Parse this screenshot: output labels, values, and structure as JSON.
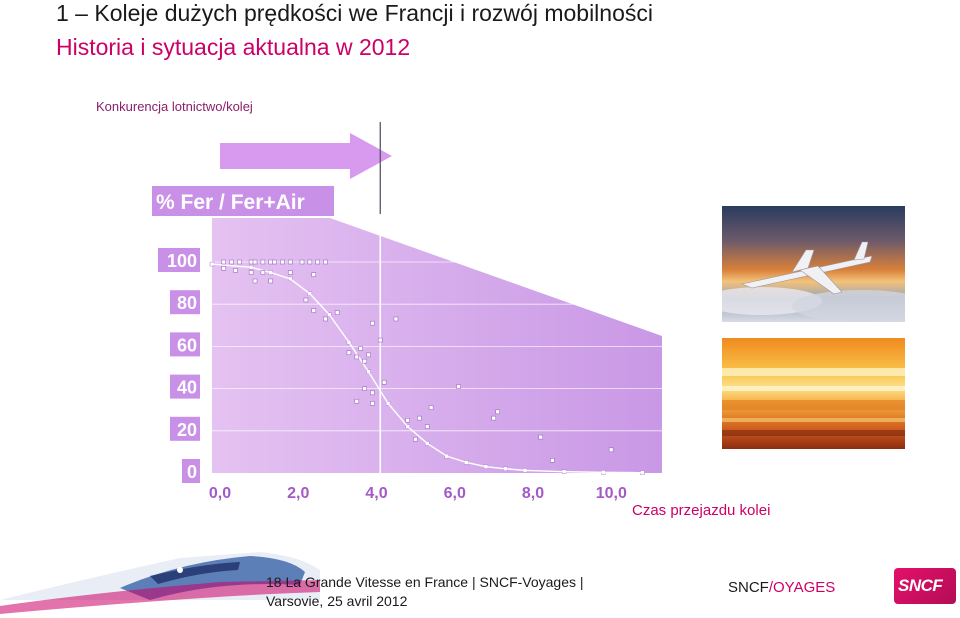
{
  "header": {
    "title": "1 – Koleje dużych prędkości we Francji i rozwój mobilności",
    "subtitle": "Historia i sytuacja aktualna w  2012",
    "section": "Konkurencja lotnictwo/kolej"
  },
  "chart_data": {
    "type": "scatter",
    "ylabel": "% Fer / Fer+Air",
    "xlabel": "Czas przejazdu kolei",
    "x_ticks": [
      "0,0",
      "2,0",
      "4,0",
      "6,0",
      "8,0",
      "10,0"
    ],
    "y_ticks": [
      "0",
      "20",
      "40",
      "60",
      "80",
      "100"
    ],
    "xlim": [
      0,
      11.5
    ],
    "ylim": [
      0,
      100
    ],
    "reference_x": 4.3,
    "series": [
      {
        "type": "scatter",
        "points": [
          [
            0.3,
            100
          ],
          [
            0.5,
            100
          ],
          [
            0.7,
            100
          ],
          [
            1.0,
            100
          ],
          [
            1.1,
            100
          ],
          [
            1.3,
            100
          ],
          [
            1.5,
            100
          ],
          [
            1.6,
            100
          ],
          [
            1.8,
            100
          ],
          [
            2.0,
            100
          ],
          [
            2.3,
            100
          ],
          [
            2.5,
            100
          ],
          [
            2.7,
            100
          ],
          [
            2.9,
            100
          ],
          [
            0.3,
            97
          ],
          [
            0.6,
            96
          ],
          [
            1.0,
            95
          ],
          [
            1.3,
            95
          ],
          [
            2.0,
            95
          ],
          [
            2.6,
            94
          ],
          [
            1.1,
            91
          ],
          [
            1.5,
            91
          ],
          [
            2.4,
            82
          ],
          [
            2.6,
            77
          ],
          [
            3.2,
            76
          ],
          [
            2.9,
            73
          ],
          [
            4.7,
            73
          ],
          [
            4.1,
            71
          ],
          [
            4.3,
            63
          ],
          [
            3.8,
            59
          ],
          [
            4.0,
            56
          ],
          [
            3.7,
            55
          ],
          [
            3.9,
            53
          ],
          [
            3.5,
            57
          ],
          [
            4.4,
            43
          ],
          [
            6.3,
            41
          ],
          [
            3.9,
            40
          ],
          [
            4.1,
            38
          ],
          [
            3.7,
            34
          ],
          [
            4.1,
            33
          ],
          [
            5.6,
            31
          ],
          [
            7.3,
            29
          ],
          [
            5.3,
            26
          ],
          [
            7.2,
            26
          ],
          [
            5.0,
            25
          ],
          [
            5.5,
            22
          ],
          [
            8.4,
            17
          ],
          [
            5.2,
            16
          ],
          [
            10.2,
            11
          ],
          [
            8.7,
            6
          ]
        ]
      },
      {
        "type": "line",
        "points": [
          [
            0,
            99
          ],
          [
            1,
            97.5
          ],
          [
            1.5,
            95
          ],
          [
            2,
            92
          ],
          [
            2.5,
            85
          ],
          [
            3,
            75
          ],
          [
            3.5,
            62
          ],
          [
            4,
            48
          ],
          [
            4.5,
            33
          ],
          [
            5,
            22
          ],
          [
            5.5,
            14
          ],
          [
            6,
            8
          ],
          [
            6.5,
            5
          ],
          [
            7,
            3
          ],
          [
            7.5,
            2
          ],
          [
            8,
            1.2
          ],
          [
            9,
            0.6
          ],
          [
            10,
            0.3
          ],
          [
            11,
            0.2
          ]
        ]
      }
    ]
  },
  "photos": {
    "plane_label": "plane-photo",
    "train_label": "train-photo"
  },
  "footer": {
    "line1": "18 La Grande Vitesse en France | SNCF-Voyages |",
    "line2": "Varsovie, 25 avril 2012",
    "brand_a": "SNCF",
    "brand_b": "/OYAGES",
    "logo_text": "SNCF"
  },
  "colors": {
    "accent": "#cc0066",
    "panel": "#d9a8ec",
    "label_box": "#c890e6",
    "arrow": "#d79aef"
  }
}
